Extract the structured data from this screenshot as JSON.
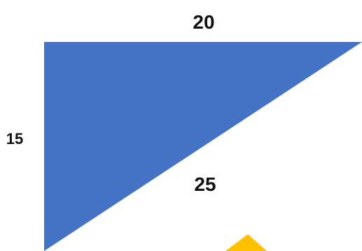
{
  "triangle": {
    "top_side_label": "20",
    "left_side_label": "15",
    "hypotenuse_label": "25",
    "fill_color": "#4472c4"
  },
  "partial_shape": {
    "fill_color": "#ffc000"
  }
}
